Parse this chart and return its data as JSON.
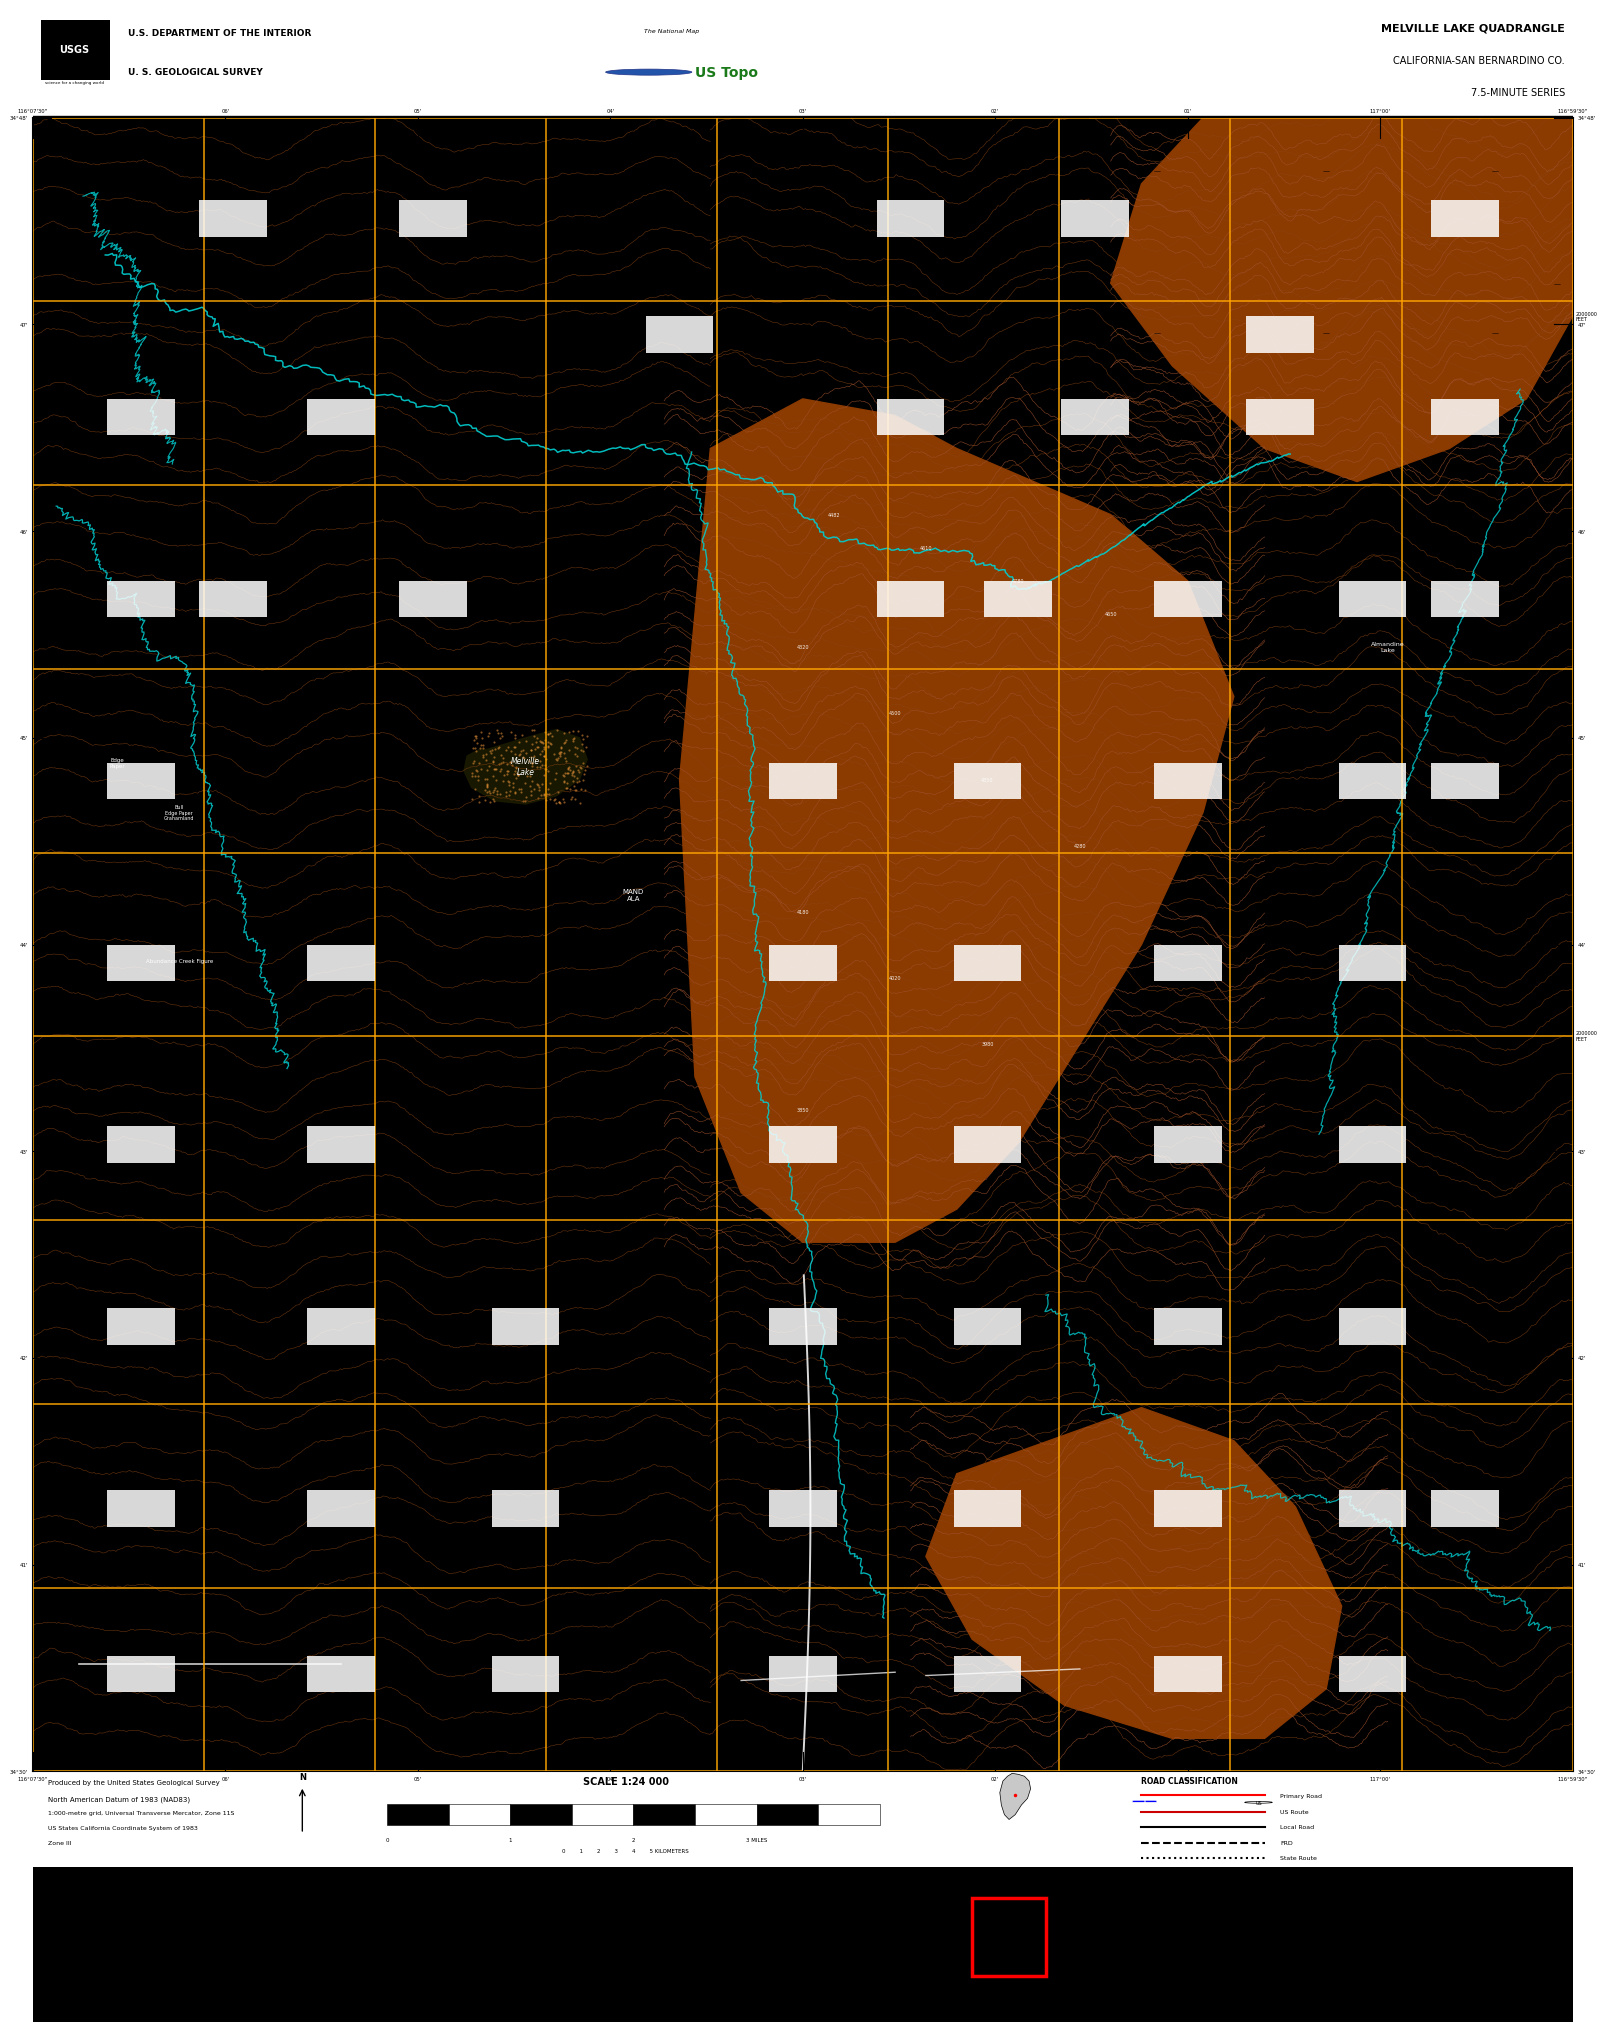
{
  "title": "MELVILLE LAKE QUADRANGLE",
  "subtitle1": "CALIFORNIA-SAN BERNARDINO CO.",
  "subtitle2": "7.5-MINUTE SERIES",
  "dept_line1": "U.S. DEPARTMENT OF THE INTERIOR",
  "dept_line2": "U. S. GEOLOGICAL SURVEY",
  "scale_text": "SCALE 1:24 000",
  "figure_bg": "#ffffff",
  "map_bg": "#000000",
  "bottom_bar_bg": "#000000",
  "grid_color": "#FFA500",
  "contour_color": "#8B4513",
  "contour_color2": "#A0522D",
  "water_color": "#00CED1",
  "topo_brown": "#6B2E00",
  "topo_brown2": "#8B3A00",
  "road_white": "#ffffff",
  "red_rect_color": "#FF0000",
  "figure_width": 16.38,
  "figure_height": 20.88
}
